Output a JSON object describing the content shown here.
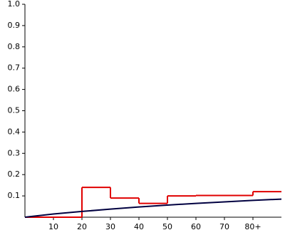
{
  "chart_data": {
    "type": "line",
    "xlim": [
      0,
      90
    ],
    "ylim": [
      0,
      1
    ],
    "xticks": [
      10,
      20,
      30,
      40,
      50,
      60,
      70,
      {
        "value": 80,
        "label": "80+"
      }
    ],
    "yticks": [
      0.1,
      0.2,
      0.3,
      0.4,
      0.5,
      0.6,
      0.7,
      0.8,
      0.9,
      {
        "value": 1,
        "label": "1.0"
      }
    ],
    "series": [
      {
        "type": "step",
        "color": "#e00000",
        "bins": [
          0,
          20,
          30,
          40,
          50,
          60,
          80,
          90
        ],
        "values": [
          0,
          0.14,
          0.09,
          0.065,
          0.1,
          0.102,
          0.12
        ]
      },
      {
        "type": "line",
        "color": "#000040",
        "x": [
          0,
          10,
          20,
          30,
          40,
          50,
          60,
          70,
          80,
          90
        ],
        "values": [
          0,
          0.015,
          0.027,
          0.038,
          0.048,
          0.057,
          0.065,
          0.072,
          0.079,
          0.085
        ]
      }
    ]
  }
}
